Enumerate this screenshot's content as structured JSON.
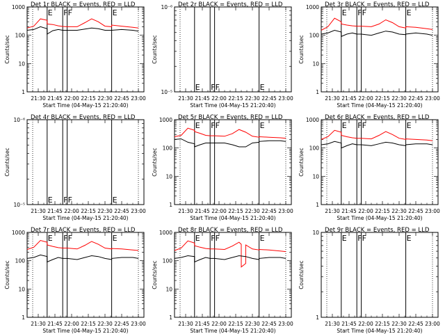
{
  "chart_data": [
    {
      "type": "line",
      "title": "Det 1r BLACK = Events, RED = LLD",
      "xlabel": "Start Time (04-May-15 21:20:40)",
      "ylabel": "Counts/sec",
      "yscale": "log",
      "ylim": [
        1,
        1000
      ],
      "y_tick_labels": [
        "1000",
        "100",
        "10",
        "1"
      ],
      "xlim": [
        "21:20",
        "23:05"
      ],
      "x_tick_labels": [
        "21:30",
        "21:45",
        "22:00",
        "22:15",
        "22:30",
        "22:45",
        "23:00"
      ],
      "markers": [
        {
          "label": "E",
          "t": "21:38"
        },
        {
          "label": "F",
          "t": "21:52"
        },
        {
          "label": "F",
          "t": "21:56"
        },
        {
          "label": "E",
          "t": "22:36"
        }
      ],
      "dotted_lines_t": [
        "21:25",
        "23:00"
      ],
      "series": [
        {
          "color": "#ff0000",
          "t": [
            "21:20",
            "21:26",
            "21:32",
            "21:38",
            "21:38",
            "21:43",
            "21:48",
            "21:52",
            "21:56",
            "22:05",
            "22:12",
            "22:18",
            "22:24",
            "22:30",
            "22:36",
            "22:36",
            "22:45",
            "22:55",
            "23:00"
          ],
          "values": [
            180,
            210,
            380,
            340,
            250,
            240,
            215,
            205,
            200,
            200,
            280,
            380,
            300,
            210,
            200,
            230,
            210,
            190,
            180
          ]
        },
        {
          "color": "#000000",
          "t": [
            "21:20",
            "21:26",
            "21:32",
            "21:38",
            "21:38",
            "21:43",
            "21:48",
            "21:52",
            "21:56",
            "22:05",
            "22:12",
            "22:18",
            "22:24",
            "22:30",
            "22:36",
            "22:36",
            "22:45",
            "22:55",
            "23:00"
          ],
          "values": [
            150,
            160,
            200,
            170,
            110,
            145,
            160,
            150,
            150,
            150,
            165,
            180,
            170,
            150,
            150,
            150,
            160,
            150,
            140
          ]
        }
      ]
    },
    {
      "type": "line",
      "title": "Det 2r BLACK = Events, RED = LLD",
      "xlabel": "Start Time (04-May-15 21:20:40)",
      "ylabel": "Counts/sec",
      "yscale": "log",
      "ylim": [
        1e-06,
        1e-05
      ],
      "y_tick_labels": [
        "10⁻⁶",
        "10⁻⁵"
      ],
      "xlim": [
        "21:20",
        "23:05"
      ],
      "x_tick_labels": [
        "21:30",
        "21:45",
        "22:00",
        "22:15",
        "22:30",
        "22:45",
        "23:00"
      ],
      "markers": [
        {
          "label": "E",
          "t": "21:38"
        },
        {
          "label": "F",
          "t": "21:52"
        },
        {
          "label": "F",
          "t": "21:56"
        },
        {
          "label": "E",
          "t": "22:36"
        }
      ],
      "dotted_lines_t": [
        "21:25",
        "23:00"
      ],
      "series": []
    },
    {
      "type": "line",
      "title": "Det 3r BLACK = Events, RED = LLD",
      "xlabel": "Start Time (04-May-15 21:20:40)",
      "ylabel": "Counts/sec",
      "yscale": "log",
      "ylim": [
        1,
        1000
      ],
      "y_tick_labels": [
        "1000",
        "100",
        "10",
        "1"
      ],
      "xlim": [
        "21:20",
        "23:05"
      ],
      "x_tick_labels": [
        "21:30",
        "21:45",
        "22:00",
        "22:15",
        "22:30",
        "22:45",
        "23:00"
      ],
      "markers": [
        {
          "label": "E",
          "t": "21:38"
        },
        {
          "label": "F",
          "t": "21:52"
        },
        {
          "label": "F",
          "t": "21:56"
        },
        {
          "label": "E",
          "t": "22:36"
        }
      ],
      "dotted_lines_t": [
        "21:25",
        "23:00"
      ],
      "series": [
        {
          "color": "#ff0000",
          "t": [
            "21:20",
            "21:26",
            "21:32",
            "21:38",
            "21:38",
            "21:43",
            "21:48",
            "21:52",
            "21:56",
            "22:05",
            "22:12",
            "22:18",
            "22:24",
            "22:30",
            "22:36",
            "22:36",
            "22:45",
            "22:55",
            "23:00"
          ],
          "values": [
            150,
            200,
            400,
            300,
            250,
            230,
            215,
            210,
            210,
            200,
            250,
            350,
            280,
            200,
            180,
            200,
            190,
            170,
            160
          ]
        },
        {
          "color": "#000000",
          "t": [
            "21:20",
            "21:26",
            "21:32",
            "21:38",
            "21:38",
            "21:43",
            "21:48",
            "21:52",
            "21:56",
            "22:05",
            "22:12",
            "22:18",
            "22:24",
            "22:30",
            "22:36",
            "22:36",
            "22:45",
            "22:55",
            "23:00"
          ],
          "values": [
            110,
            120,
            150,
            130,
            90,
            110,
            120,
            110,
            110,
            100,
            120,
            140,
            130,
            110,
            105,
            110,
            120,
            110,
            100
          ]
        }
      ]
    },
    {
      "type": "line",
      "title": "Det 4r BLACK = Events, RED = LLD",
      "xlabel": "Start Time (04-May-15 21:20:40)",
      "ylabel": "Counts/sec",
      "yscale": "log",
      "ylim": [
        1e-06,
        1e-05
      ],
      "y_tick_labels": [
        "10⁻⁶",
        "10⁻⁵"
      ],
      "xlim": [
        "21:20",
        "23:05"
      ],
      "x_tick_labels": [
        "21:30",
        "21:45",
        "22:00",
        "22:15",
        "22:30",
        "22:45",
        "23:00"
      ],
      "markers": [
        {
          "label": "E",
          "t": "21:38"
        },
        {
          "label": "F",
          "t": "21:52"
        },
        {
          "label": "F",
          "t": "21:56"
        },
        {
          "label": "E",
          "t": "22:36"
        }
      ],
      "dotted_lines_t": [
        "21:25",
        "23:00"
      ],
      "series": []
    },
    {
      "type": "line",
      "title": "Det 5r BLACK = Events, RED = LLD",
      "xlabel": "Start Time (04-May-15 21:20:40)",
      "ylabel": "Counts/sec",
      "yscale": "log",
      "ylim": [
        1,
        1000
      ],
      "y_tick_labels": [
        "1000",
        "100",
        "10",
        "1"
      ],
      "xlim": [
        "21:20",
        "23:05"
      ],
      "x_tick_labels": [
        "21:30",
        "21:45",
        "22:00",
        "22:15",
        "22:30",
        "22:45",
        "23:00"
      ],
      "markers": [
        {
          "label": "E",
          "t": "21:38"
        },
        {
          "label": "F",
          "t": "21:52"
        },
        {
          "label": "F",
          "t": "21:56"
        },
        {
          "label": "E",
          "t": "22:36"
        }
      ],
      "dotted_lines_t": [
        "21:25",
        "23:00"
      ],
      "series": [
        {
          "color": "#ff0000",
          "t": [
            "21:20",
            "21:26",
            "21:32",
            "21:38",
            "21:38",
            "21:43",
            "21:48",
            "21:52",
            "21:56",
            "22:05",
            "22:12",
            "22:18",
            "22:24",
            "22:30",
            "22:36",
            "22:36",
            "22:45",
            "22:55",
            "23:00"
          ],
          "values": [
            250,
            280,
            500,
            420,
            380,
            330,
            280,
            270,
            270,
            260,
            320,
            450,
            360,
            260,
            240,
            250,
            240,
            230,
            220
          ]
        },
        {
          "color": "#000000",
          "t": [
            "21:20",
            "21:26",
            "21:32",
            "21:38",
            "21:38",
            "21:43",
            "21:48",
            "21:52",
            "21:56",
            "22:05",
            "22:12",
            "22:18",
            "22:24",
            "22:30",
            "22:36",
            "22:36",
            "22:45",
            "22:55",
            "23:00"
          ],
          "values": [
            200,
            210,
            160,
            140,
            110,
            130,
            150,
            150,
            150,
            150,
            130,
            110,
            110,
            150,
            160,
            170,
            180,
            180,
            170
          ]
        }
      ]
    },
    {
      "type": "line",
      "title": "Det 6r BLACK = Events, RED = LLD",
      "xlabel": "Start Time (04-May-15 21:20:40)",
      "ylabel": "Counts/sec",
      "yscale": "log",
      "ylim": [
        1,
        1000
      ],
      "y_tick_labels": [
        "1000",
        "100",
        "10",
        "1"
      ],
      "xlim": [
        "21:20",
        "23:05"
      ],
      "x_tick_labels": [
        "21:30",
        "21:45",
        "22:00",
        "22:15",
        "22:30",
        "22:45",
        "23:00"
      ],
      "markers": [
        {
          "label": "E",
          "t": "21:38"
        },
        {
          "label": "F",
          "t": "21:52"
        },
        {
          "label": "F",
          "t": "21:56"
        },
        {
          "label": "E",
          "t": "22:36"
        }
      ],
      "dotted_lines_t": [
        "21:25",
        "23:00"
      ],
      "series": [
        {
          "color": "#ff0000",
          "t": [
            "21:20",
            "21:26",
            "21:32",
            "21:38",
            "21:38",
            "21:43",
            "21:48",
            "21:52",
            "21:56",
            "22:05",
            "22:12",
            "22:18",
            "22:24",
            "22:30",
            "22:36",
            "22:36",
            "22:45",
            "22:55",
            "23:00"
          ],
          "values": [
            200,
            250,
            420,
            360,
            280,
            250,
            230,
            220,
            220,
            210,
            280,
            380,
            300,
            220,
            200,
            210,
            200,
            190,
            180
          ]
        },
        {
          "color": "#000000",
          "t": [
            "21:20",
            "21:26",
            "21:32",
            "21:38",
            "21:38",
            "21:43",
            "21:48",
            "21:52",
            "21:56",
            "22:05",
            "22:12",
            "22:18",
            "22:24",
            "22:30",
            "22:36",
            "22:36",
            "22:45",
            "22:55",
            "23:00"
          ],
          "values": [
            130,
            140,
            170,
            150,
            100,
            120,
            140,
            130,
            130,
            120,
            140,
            160,
            150,
            130,
            120,
            130,
            140,
            140,
            130
          ]
        }
      ]
    },
    {
      "type": "line",
      "title": "Det 7r BLACK = Events, RED = LLD",
      "xlabel": "Start Time (04-May-15 21:20:40)",
      "ylabel": "Counts/sec",
      "yscale": "log",
      "ylim": [
        1,
        1000
      ],
      "y_tick_labels": [
        "1000",
        "100",
        "10",
        "1"
      ],
      "xlim": [
        "21:20",
        "23:05"
      ],
      "x_tick_labels": [
        "21:30",
        "21:45",
        "22:00",
        "22:15",
        "22:30",
        "22:45",
        "23:00"
      ],
      "markers": [
        {
          "label": "E",
          "t": "21:38"
        },
        {
          "label": "F",
          "t": "21:52"
        },
        {
          "label": "F",
          "t": "21:56"
        },
        {
          "label": "E",
          "t": "22:36"
        }
      ],
      "dotted_lines_t": [
        "21:25",
        "23:00"
      ],
      "series": [
        {
          "color": "#ff0000",
          "t": [
            "21:20",
            "21:26",
            "21:32",
            "21:38",
            "21:38",
            "21:43",
            "21:48",
            "21:52",
            "21:56",
            "22:05",
            "22:12",
            "22:18",
            "22:24",
            "22:30",
            "22:36",
            "22:36",
            "22:45",
            "22:55",
            "23:00"
          ],
          "values": [
            250,
            300,
            520,
            450,
            360,
            320,
            290,
            280,
            280,
            260,
            350,
            480,
            380,
            280,
            260,
            270,
            260,
            240,
            230
          ]
        },
        {
          "color": "#000000",
          "t": [
            "21:20",
            "21:26",
            "21:32",
            "21:38",
            "21:38",
            "21:43",
            "21:48",
            "21:52",
            "21:56",
            "22:05",
            "22:12",
            "22:18",
            "22:24",
            "22:30",
            "22:36",
            "22:36",
            "22:45",
            "22:55",
            "23:00"
          ],
          "values": [
            120,
            130,
            160,
            140,
            90,
            110,
            130,
            120,
            120,
            110,
            130,
            150,
            140,
            120,
            110,
            120,
            130,
            130,
            120
          ]
        }
      ]
    },
    {
      "type": "line",
      "title": "Det 8r BLACK = Events, RED = LLD",
      "xlabel": "Start Time (04-May-15 21:20:40)",
      "ylabel": "Counts/sec",
      "yscale": "log",
      "ylim": [
        1,
        1000
      ],
      "y_tick_labels": [
        "1000",
        "100",
        "10",
        "1"
      ],
      "xlim": [
        "21:20",
        "23:05"
      ],
      "x_tick_labels": [
        "21:30",
        "21:45",
        "22:00",
        "22:15",
        "22:30",
        "22:45",
        "23:00"
      ],
      "markers": [
        {
          "label": "E",
          "t": "21:38"
        },
        {
          "label": "F",
          "t": "21:52"
        },
        {
          "label": "F",
          "t": "21:56"
        },
        {
          "label": "E",
          "t": "22:36"
        }
      ],
      "dotted_lines_t": [
        "21:25",
        "23:00"
      ],
      "series": [
        {
          "color": "#ff0000",
          "t": [
            "21:20",
            "21:26",
            "21:32",
            "21:38",
            "21:38",
            "21:43",
            "21:48",
            "21:52",
            "21:56",
            "22:05",
            "22:12",
            "22:18",
            "22:20",
            "22:20",
            "22:24",
            "22:24",
            "22:30",
            "22:36",
            "22:36",
            "22:45",
            "22:55",
            "23:00"
          ],
          "values": [
            230,
            280,
            500,
            420,
            340,
            300,
            270,
            260,
            260,
            250,
            330,
            450,
            380,
            60,
            80,
            360,
            260,
            240,
            250,
            240,
            220,
            210
          ]
        },
        {
          "color": "#000000",
          "t": [
            "21:20",
            "21:26",
            "21:32",
            "21:38",
            "21:38",
            "21:43",
            "21:48",
            "21:52",
            "21:56",
            "22:05",
            "22:12",
            "22:18",
            "22:24",
            "22:30",
            "22:36",
            "22:36",
            "22:45",
            "22:55",
            "23:00"
          ],
          "values": [
            120,
            130,
            150,
            140,
            90,
            110,
            130,
            120,
            120,
            110,
            130,
            150,
            140,
            120,
            110,
            120,
            130,
            130,
            120
          ]
        }
      ]
    },
    {
      "type": "line",
      "title": "Det 9r BLACK = Events, RED = LLD",
      "xlabel": "Start Time (04-May-15 21:20:40)",
      "ylabel": "Counts/sec",
      "yscale": "log",
      "ylim": [
        1,
        10
      ],
      "y_tick_labels": [
        "10",
        "1"
      ],
      "xlim": [
        "21:20",
        "23:05"
      ],
      "x_tick_labels": [
        "21:30",
        "21:45",
        "22:00",
        "22:15",
        "22:30",
        "22:45",
        "23:00"
      ],
      "markers": [
        {
          "label": "E",
          "t": "21:38"
        },
        {
          "label": "F",
          "t": "21:52"
        },
        {
          "label": "F",
          "t": "21:56"
        },
        {
          "label": "E",
          "t": "22:36"
        }
      ],
      "dotted_lines_t": [
        "21:25",
        "23:00"
      ],
      "series": []
    }
  ]
}
